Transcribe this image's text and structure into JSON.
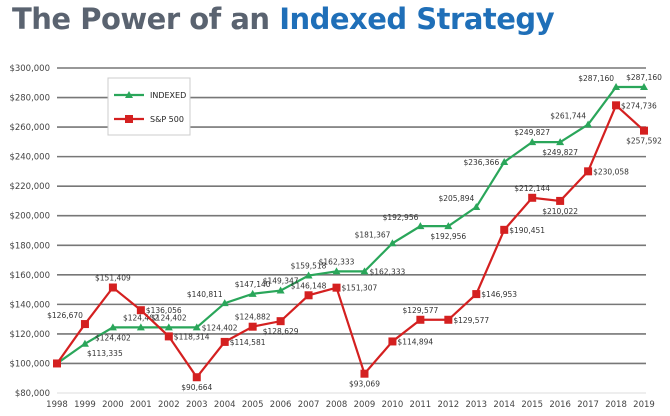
{
  "title_part1": "The Power of an",
  "title_part2": "Indexed Strategy",
  "chart_data": {
    "type": "line",
    "title": "The Power of an Indexed Strategy",
    "xlabel": "",
    "ylabel": "",
    "ylim": [
      80000,
      300000
    ],
    "yticks": [
      "$80,000",
      "$100,000",
      "$120,000",
      "$140,000",
      "$160,000",
      "$180,000",
      "$200,000",
      "$220,000",
      "$240,000",
      "$260,000",
      "$280,000",
      "$300,000"
    ],
    "grid": true,
    "legend_placement": "top-left",
    "x": [
      "1998",
      "1999",
      "2000",
      "2001",
      "2002",
      "2003",
      "2004",
      "2005",
      "2006",
      "2007",
      "2008",
      "2009",
      "2010",
      "2011",
      "2012",
      "2013",
      "2014",
      "2015",
      "2016",
      "2017",
      "2018",
      "2019"
    ],
    "series": [
      {
        "name": "INDEXED",
        "color": "#2aa65a",
        "marker": "triangle",
        "values": [
          100000,
          113335,
          124402,
          124402,
          124402,
          124402,
          140811,
          147140,
          149347,
          159518,
          162333,
          162333,
          181367,
          192956,
          192956,
          205894,
          236366,
          249827,
          249827,
          261744,
          287160,
          287160
        ],
        "labels": [
          "",
          "$113,335",
          "$124,402",
          "$124,402",
          "$124,402",
          "$124,402",
          "$140,811",
          "$147,140",
          "$149,347",
          "$159,518",
          "$162,333",
          "$162,333",
          "$181,367",
          "$192,956",
          "$192,956",
          "$205,894",
          "$236,366",
          "$249,827",
          "$249,827",
          "$261,744",
          "$287,160",
          "$287,160"
        ]
      },
      {
        "name": "S&P 500",
        "color": "#d42020",
        "marker": "square",
        "values": [
          100000,
          126670,
          151409,
          136056,
          118314,
          90664,
          114581,
          124882,
          128629,
          146148,
          151307,
          93069,
          114894,
          129577,
          129577,
          146953,
          190451,
          212144,
          210022,
          230058,
          274736,
          257592
        ],
        "labels": [
          "",
          "$126,670",
          "$151,409",
          "$136,056",
          "$118,314",
          "$90,664",
          "$114,581",
          "$124,882",
          "$128,629",
          "$146,148",
          "$151,307",
          "$93,069",
          "$114,894",
          "$129,577",
          "$129,577",
          "$146,953",
          "$190,451",
          "$212,144",
          "$210,022",
          "$230,058",
          "$274,736",
          "$257,592"
        ]
      }
    ]
  }
}
